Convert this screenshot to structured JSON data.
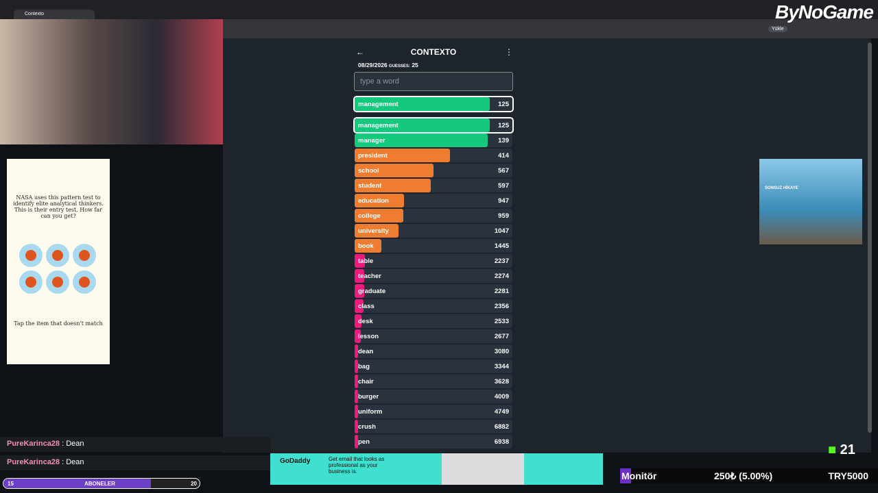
{
  "browser": {
    "tab_title": "Contexto",
    "toolbar_button": "Yükle"
  },
  "logo": "ByNoGame",
  "game": {
    "title": "CONTEXTO",
    "date": "08/29/2026",
    "guesses_label": "GUESSES:",
    "guesses": 25,
    "input_placeholder": "type a word",
    "last_guess": {
      "word": "management",
      "distance": 125
    },
    "list": [
      {
        "word": "management",
        "distance": 125
      },
      {
        "word": "manager",
        "distance": 139
      },
      {
        "word": "president",
        "distance": 414
      },
      {
        "word": "school",
        "distance": 567
      },
      {
        "word": "student",
        "distance": 597
      },
      {
        "word": "education",
        "distance": 947
      },
      {
        "word": "college",
        "distance": 959
      },
      {
        "word": "university",
        "distance": 1047
      },
      {
        "word": "book",
        "distance": 1445
      },
      {
        "word": "table",
        "distance": 2237
      },
      {
        "word": "teacher",
        "distance": 2274
      },
      {
        "word": "graduate",
        "distance": 2281
      },
      {
        "word": "class",
        "distance": 2356
      },
      {
        "word": "desk",
        "distance": 2533
      },
      {
        "word": "lesson",
        "distance": 2677
      },
      {
        "word": "dean",
        "distance": 3080
      },
      {
        "word": "bag",
        "distance": 3344
      },
      {
        "word": "chair",
        "distance": 3628
      },
      {
        "word": "burger",
        "distance": 4009
      },
      {
        "word": "uniform",
        "distance": 4749
      },
      {
        "word": "crush",
        "distance": 6882
      },
      {
        "word": "pen",
        "distance": 6938
      }
    ]
  },
  "ad_left": {
    "text": "NASA uses this pattern test to identify elite analytical thinkers. This is their entry test. How far can you get?",
    "footer": "Tap the item that doesn't match"
  },
  "ad_right": {
    "text": "SONSUZ HİKAYE"
  },
  "chat": [
    {
      "user": "PureKarinca28",
      "message": "Dean"
    },
    {
      "user": "PureKarinca28",
      "message": "Dean"
    }
  ],
  "sub_bar": {
    "current": 15,
    "label": "ABONELER",
    "goal": 20
  },
  "ad_bottom": {
    "brand": "GoDaddy",
    "text": "Get email that looks as professional as your business is."
  },
  "ticker": {
    "item": "Monitör",
    "price": "250₺ (5.00%)",
    "total": "TRY5000"
  },
  "kick_count": 21
}
